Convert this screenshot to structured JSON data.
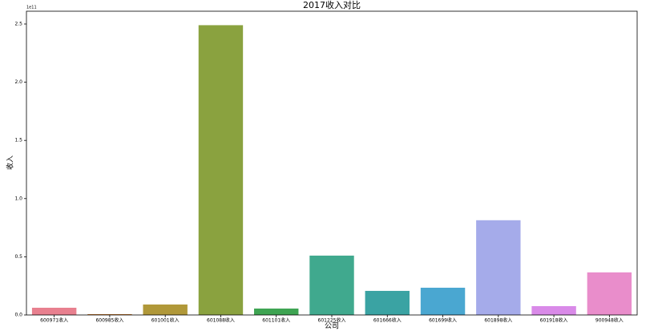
{
  "chart_data": {
    "type": "bar",
    "title": "2017收入对比",
    "xlabel": "公司",
    "ylabel": "收入",
    "y_offset_label": "1e11",
    "categories": [
      "600971收入",
      "600985收入",
      "601001收入",
      "601088收入",
      "601101收入",
      "601225收入",
      "601666收入",
      "601699收入",
      "601898收入",
      "601918收入",
      "900948收入"
    ],
    "values": [
      0.062,
      0.007,
      0.09,
      2.49,
      0.055,
      0.51,
      0.207,
      0.234,
      0.814,
      0.076,
      0.366
    ],
    "colors": [
      "#e8808f",
      "#c8782c",
      "#b09839",
      "#8aa23f",
      "#3ea452",
      "#40a98e",
      "#3aa3a3",
      "#4aa7d1",
      "#a5abea",
      "#d98ae8",
      "#e98dcb"
    ],
    "ylim": [
      0,
      2.61
    ],
    "yticks": [
      {
        "value": 0,
        "label": "0.0"
      },
      {
        "value": 0.5,
        "label": "0.5"
      },
      {
        "value": 1,
        "label": "1.0"
      },
      {
        "value": 1.5,
        "label": "1.5"
      },
      {
        "value": 2,
        "label": "2.0"
      },
      {
        "value": 2.5,
        "label": "2.5"
      }
    ],
    "grid": false
  }
}
